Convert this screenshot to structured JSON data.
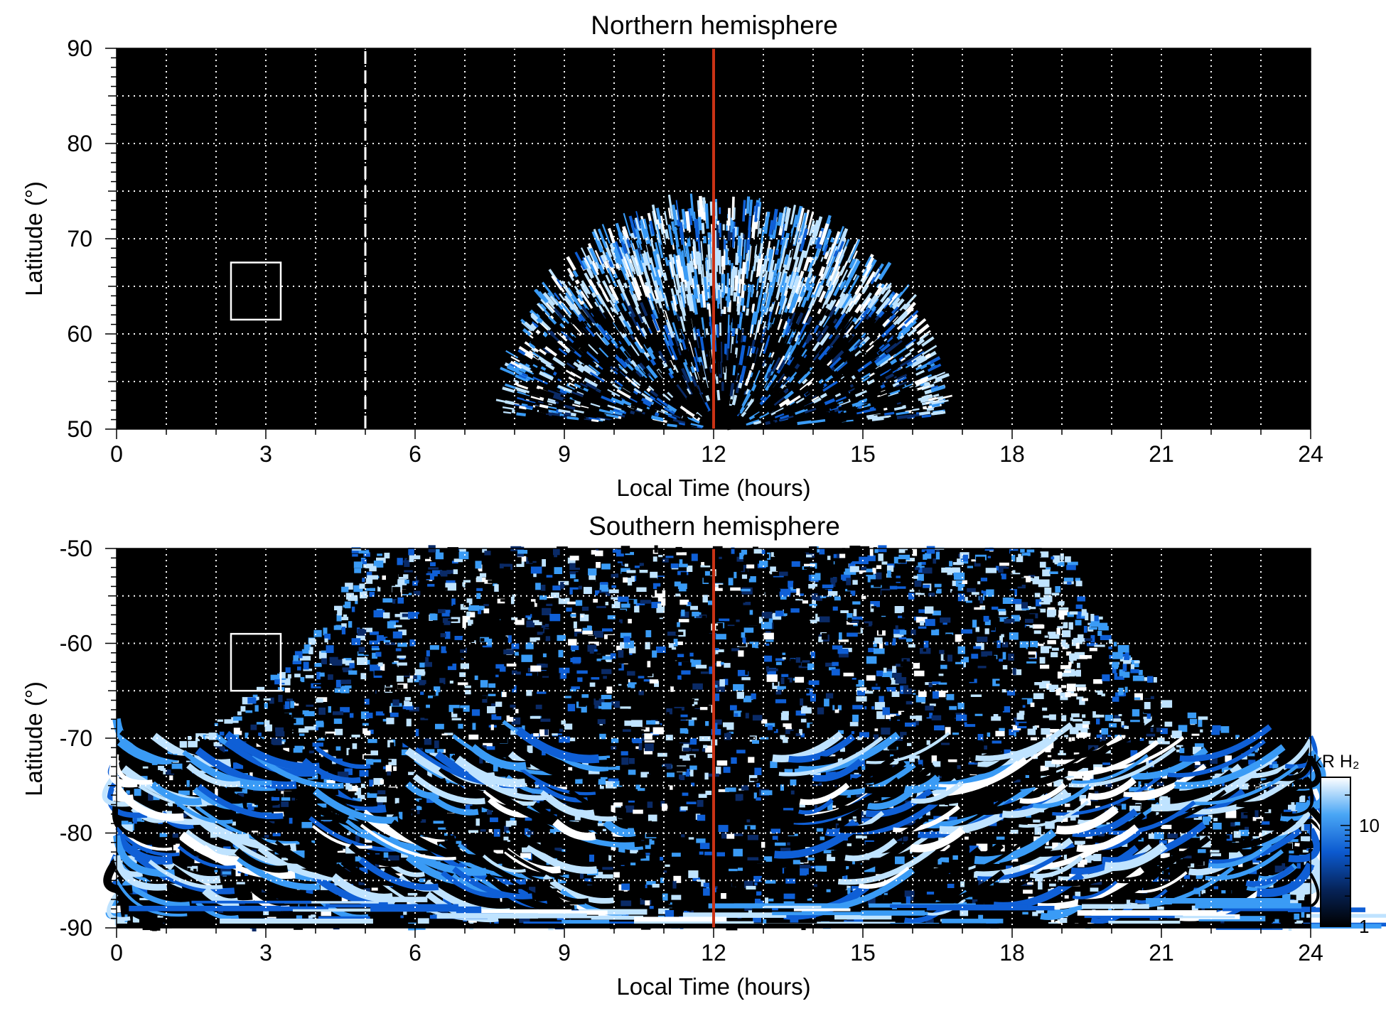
{
  "chart_data": [
    {
      "type": "heatmap",
      "title": "Northern hemisphere",
      "xlabel": "Local Time (hours)",
      "ylabel": "Latitude (°)",
      "xlim": [
        0,
        24
      ],
      "ylim": [
        50,
        90
      ],
      "x_ticks": [
        0,
        3,
        6,
        9,
        12,
        15,
        18,
        21,
        24
      ],
      "y_ticks": [
        50,
        60,
        70,
        80,
        90
      ],
      "x_tick_labels": [
        "0",
        "3",
        "6",
        "9",
        "12",
        "15",
        "18",
        "21",
        "24"
      ],
      "y_tick_labels": [
        "50",
        "60",
        "70",
        "80",
        "90"
      ],
      "grid": true,
      "colormap": [
        "#000000",
        "#0a2a66",
        "#0f5fd6",
        "#3a9bf5",
        "#bfe3ff",
        "#ffffff"
      ],
      "emission_region": {
        "shape": "dome",
        "lt_range": [
          7.8,
          16.6
        ],
        "lat_edge": 50,
        "lat_top": 73,
        "bright_band_lat": [
          62,
          68
        ]
      },
      "red_line_lt": 12,
      "dashed_line_lt": 5,
      "box": {
        "lt_range": [
          2.3,
          3.3
        ],
        "lat_range": [
          61.5,
          67.5
        ]
      }
    },
    {
      "type": "heatmap",
      "title": "Southern hemisphere",
      "xlabel": "Local Time (hours)",
      "ylabel": "Latitude (°)",
      "xlim": [
        0,
        24
      ],
      "ylim": [
        -90,
        -50
      ],
      "x_ticks": [
        0,
        3,
        6,
        9,
        12,
        15,
        18,
        21,
        24
      ],
      "y_ticks": [
        -90,
        -80,
        -70,
        -60,
        -50
      ],
      "x_tick_labels": [
        "0",
        "3",
        "6",
        "9",
        "12",
        "15",
        "18",
        "21",
        "24"
      ],
      "y_tick_labels": [
        "-90",
        "-80",
        "-70",
        "-60",
        "-50"
      ],
      "grid": true,
      "colormap": [
        "#000000",
        "#0a2a66",
        "#0f5fd6",
        "#3a9bf5",
        "#bfe3ff",
        "#ffffff"
      ],
      "emission_region": {
        "shape": "bowl",
        "lt_range": [
          0,
          24
        ],
        "lat_edge": -50,
        "lat_bottom": -90,
        "bright_arc_lt": 19
      },
      "red_line_lt": 12,
      "box": {
        "lt_range": [
          2.3,
          3.3
        ],
        "lat_range": [
          -65,
          -59
        ]
      },
      "colorbar": {
        "label": "kR H₂",
        "tick_labels": [
          "1",
          "10"
        ],
        "tick_values": [
          1,
          10
        ],
        "range": [
          1,
          30
        ],
        "scale": "log"
      }
    }
  ]
}
